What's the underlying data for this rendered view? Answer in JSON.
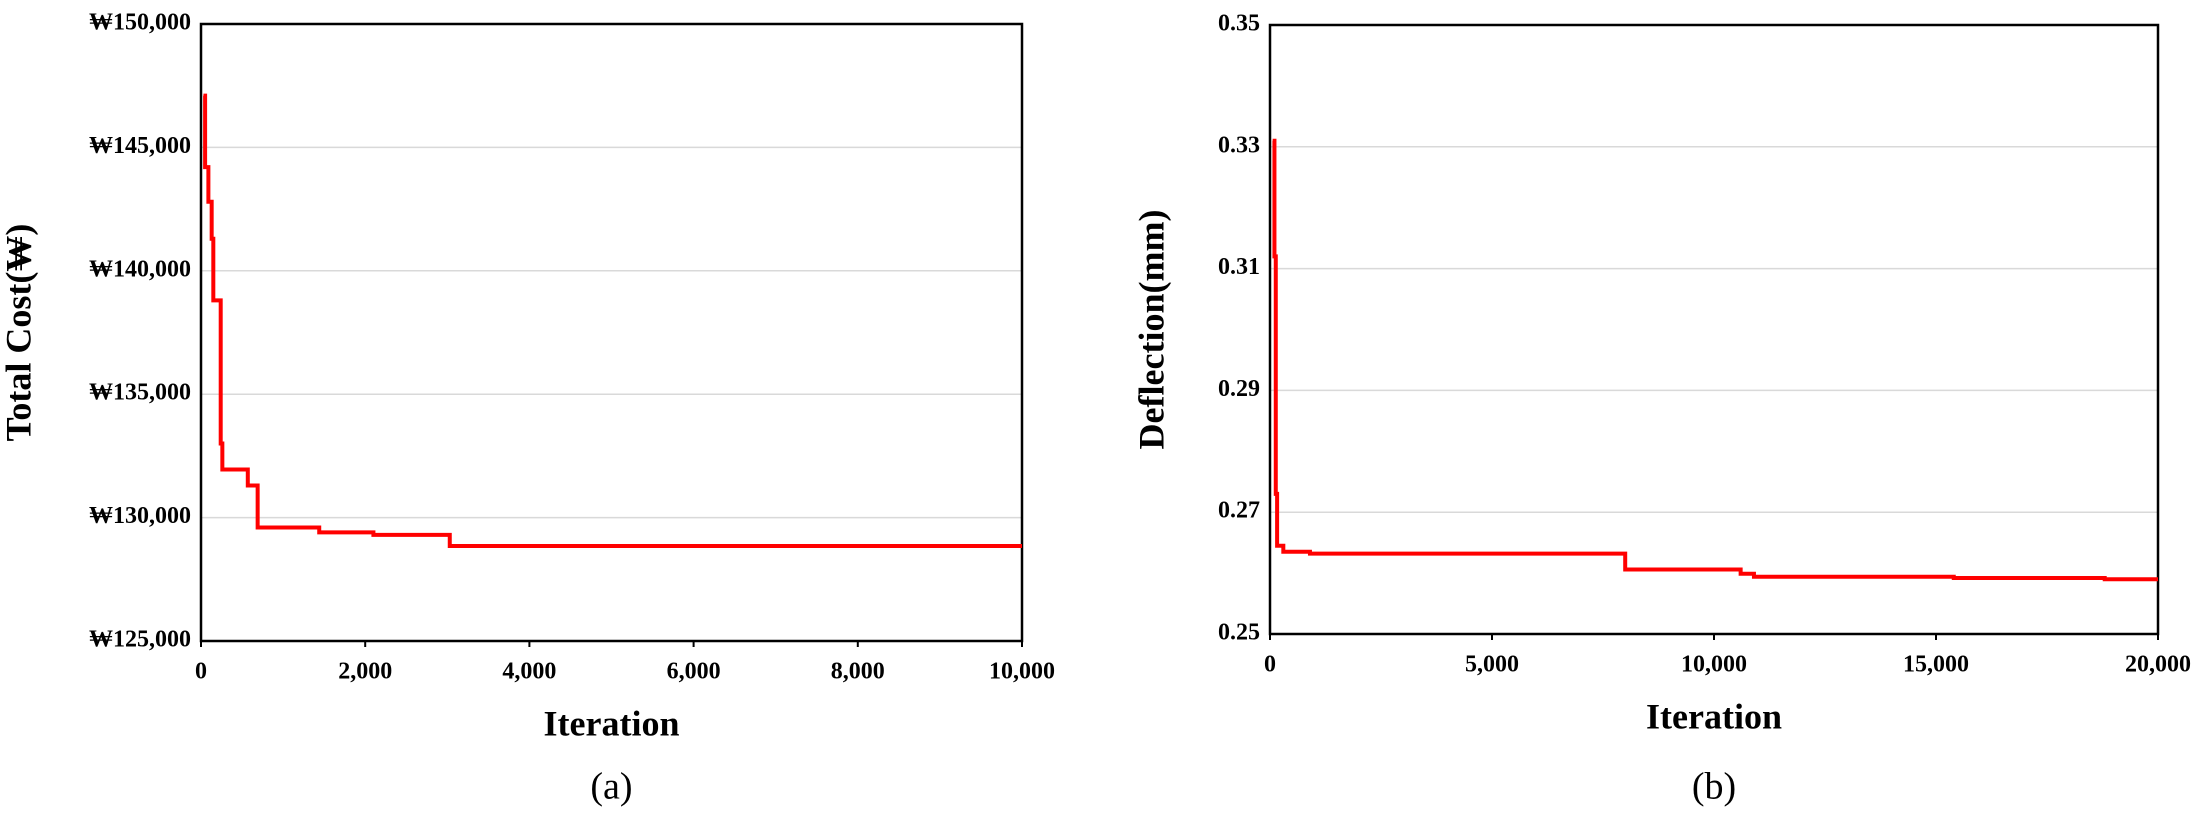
{
  "chart_data": [
    {
      "type": "line",
      "caption": "(a)",
      "x_label": "Iteration",
      "y_label": "Total Cost(₩)",
      "x": [
        30,
        50,
        90,
        130,
        150,
        240,
        260,
        570,
        690,
        1440,
        2100,
        3030,
        10000
      ],
      "values": [
        147100,
        144200,
        142800,
        141300,
        138800,
        133000,
        131950,
        131300,
        129600,
        129400,
        129300,
        128850,
        128850
      ],
      "color": "#ff0000",
      "step": true,
      "grid": true,
      "xlim": [
        0,
        10000
      ],
      "xticks": [
        0,
        {
          "value": 2000,
          "label": "2,000"
        },
        {
          "value": 4000,
          "label": "4,000"
        },
        {
          "value": 6000,
          "label": "6,000"
        },
        {
          "value": 8000,
          "label": "8,000"
        },
        {
          "value": 10000,
          "label": "10,000"
        }
      ],
      "ylim": [
        125000,
        150000
      ],
      "yticks": [
        {
          "value": 125000,
          "label": "₩125,000"
        },
        {
          "value": 130000,
          "label": "₩130,000"
        },
        {
          "value": 135000,
          "label": "₩135,000"
        },
        {
          "value": 140000,
          "label": "₩140,000"
        },
        {
          "value": 145000,
          "label": "₩145,000"
        },
        {
          "value": 150000,
          "label": "₩150,000"
        }
      ]
    },
    {
      "type": "line",
      "caption": "(b)",
      "x_label": "Iteration",
      "y_label": "Deflection(mm)",
      "x": [
        60,
        100,
        130,
        160,
        300,
        900,
        8000,
        10600,
        10900,
        15400,
        18800,
        20000
      ],
      "values": [
        0.331,
        0.312,
        0.273,
        0.2645,
        0.2635,
        0.2632,
        0.2606,
        0.2599,
        0.2594,
        0.2592,
        0.259,
        0.259
      ],
      "color": "#ff0000",
      "step": true,
      "grid": true,
      "xlim": [
        0,
        20000
      ],
      "xticks": [
        0,
        {
          "value": 5000,
          "label": "5,000"
        },
        {
          "value": 10000,
          "label": "10,000"
        },
        {
          "value": 15000,
          "label": "15,000"
        },
        {
          "value": 20000,
          "label": "20,000"
        }
      ],
      "ylim": [
        0.25,
        0.35
      ],
      "yticks": [
        0.25,
        0.27,
        0.29,
        0.31,
        0.33,
        0.35
      ]
    }
  ]
}
